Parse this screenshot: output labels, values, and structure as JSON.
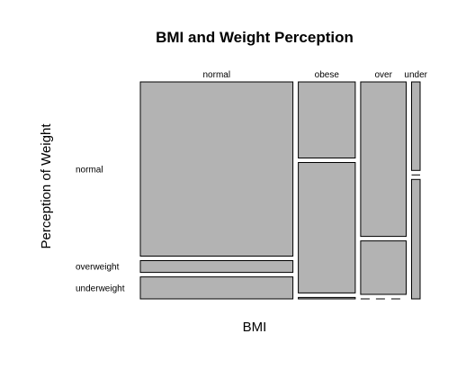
{
  "chart_data": {
    "type": "mosaic",
    "title": "BMI and Weight Perception",
    "xlabel": "BMI",
    "ylabel": "Perception of Weight",
    "x_categories": [
      "normal",
      "obese",
      "over",
      "under"
    ],
    "y_categories": [
      "normal",
      "overweight",
      "underweight"
    ],
    "x_proportions": [
      0.587,
      0.219,
      0.175,
      0.033
    ],
    "cells": [
      {
        "x": "normal",
        "proportions": {
          "normal": 0.826,
          "overweight": 0.056,
          "underweight": 0.104
        }
      },
      {
        "x": "obese",
        "proportions": {
          "normal": 0.361,
          "overweight": 0.619,
          "underweight": 0.007
        }
      },
      {
        "x": "over",
        "proportions": {
          "normal": 0.731,
          "overweight": 0.253,
          "underweight": 0.0
        }
      },
      {
        "x": "under",
        "proportions": {
          "normal": 0.417,
          "overweight": 0.0,
          "underweight": 0.563
        }
      }
    ],
    "fill_color": "#b3b3b3",
    "stroke_color": "#000000"
  }
}
